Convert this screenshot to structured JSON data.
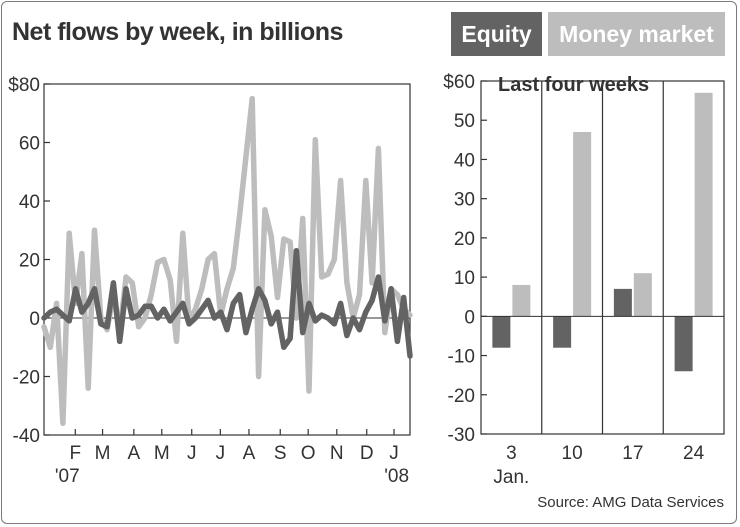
{
  "header": {
    "title": "Net flows by week, in billions",
    "legend_equity": "Equity",
    "legend_money": "Money market"
  },
  "colors": {
    "equity": "#636363",
    "money": "#bdbdbd",
    "frame": "#7a7a7a",
    "text": "#333333"
  },
  "source": "Source: AMG Data Services",
  "chart_data": [
    {
      "type": "line",
      "title": "Net flows by week, in billions",
      "xlabel": "",
      "ylabel": "",
      "ylim": [
        -40,
        80
      ],
      "y_ticks": [
        -40,
        -20,
        0,
        20,
        40,
        60,
        80
      ],
      "y_tick_labels": [
        "-40",
        "-20",
        "0",
        "20",
        "40",
        "60",
        "$80"
      ],
      "x_month_labels": [
        {
          "label": "F",
          "week": 4.7
        },
        {
          "label": "M",
          "week": 8.8
        },
        {
          "label": "A",
          "week": 13.5
        },
        {
          "label": "M",
          "week": 17.7
        },
        {
          "label": "J",
          "week": 22.2
        },
        {
          "label": "J",
          "week": 26.5
        },
        {
          "label": "A",
          "week": 30.8
        },
        {
          "label": "S",
          "week": 35.5
        },
        {
          "label": "O",
          "week": 39.7
        },
        {
          "label": "N",
          "week": 44.0
        },
        {
          "label": "D",
          "week": 48.5
        },
        {
          "label": "J",
          "week": 52.6
        }
      ],
      "year_labels": [
        {
          "label": "'07",
          "week": 3.5
        },
        {
          "label": "'08",
          "week": 53.0
        }
      ],
      "x_range": [
        0,
        55
      ],
      "series": [
        {
          "name": "Equity",
          "values": [
            0,
            2,
            3,
            1,
            -1,
            10,
            2,
            5,
            10,
            -2,
            -3,
            12,
            -8,
            10,
            0,
            1,
            4,
            4,
            0,
            3,
            -1,
            2,
            5,
            -2,
            0,
            3,
            6,
            0,
            2,
            -4,
            5,
            8,
            -5,
            3,
            10,
            6,
            -2,
            2,
            -10,
            -7,
            23,
            -5,
            5,
            -1,
            1,
            0,
            -2,
            5,
            -6,
            0,
            -4,
            2,
            6,
            14,
            -1,
            10,
            -8,
            7,
            -13
          ]
        },
        {
          "name": "Money market",
          "values": [
            -3,
            -10,
            5,
            -36,
            29,
            5,
            22,
            -24,
            30,
            0,
            -4,
            8,
            -5,
            14,
            12,
            -3,
            0,
            8,
            19,
            20,
            13,
            -8,
            29,
            -1,
            3,
            10,
            20,
            22,
            1,
            10,
            17,
            35,
            55,
            75,
            -20,
            37,
            28,
            7,
            27,
            26,
            0,
            34,
            -25,
            61,
            14,
            15,
            20,
            47,
            12,
            0,
            8,
            47,
            12,
            58,
            -5,
            10,
            8,
            3,
            1
          ]
        }
      ]
    },
    {
      "type": "bar",
      "title": "Last four weeks",
      "categories": [
        "3",
        "10",
        "17",
        "24"
      ],
      "category_sublabel": "Jan.",
      "ylim": [
        -30,
        60
      ],
      "y_ticks": [
        -30,
        -20,
        -10,
        0,
        10,
        20,
        30,
        40,
        50,
        60
      ],
      "y_tick_labels": [
        "-30",
        "-20",
        "-10",
        "0",
        "10",
        "20",
        "30",
        "40",
        "50",
        "$60"
      ],
      "series": [
        {
          "name": "Equity",
          "values": [
            -8,
            -8,
            7,
            -14
          ]
        },
        {
          "name": "Money market",
          "values": [
            8,
            47,
            11,
            57
          ]
        }
      ]
    }
  ]
}
